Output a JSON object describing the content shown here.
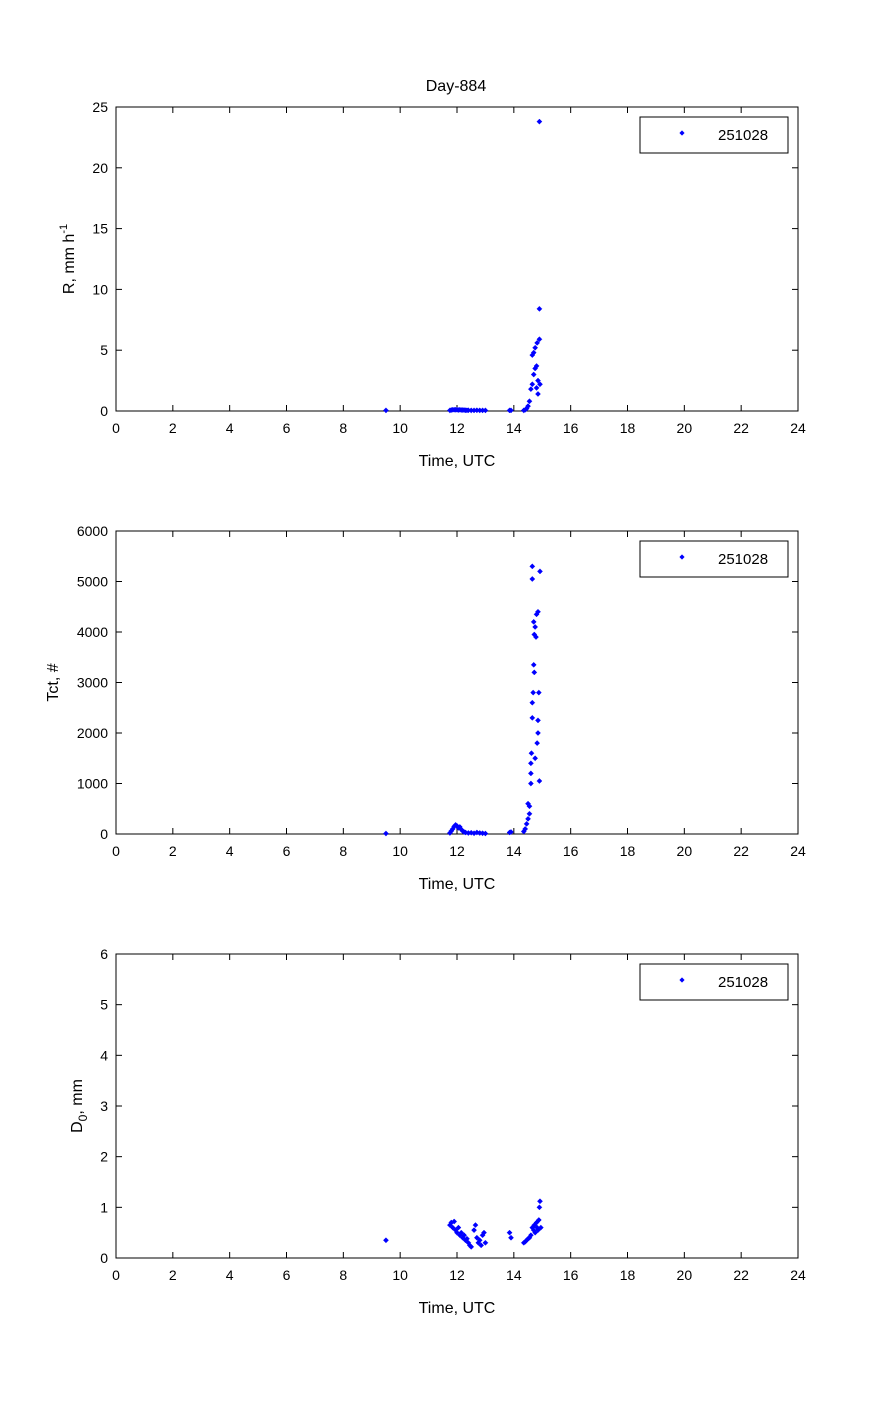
{
  "figure_title": "Day-884",
  "marker_color": "#0000ff",
  "chart_data": [
    {
      "type": "scatter",
      "title": "Day-884",
      "xlabel": "Time, UTC",
      "ylabel": {
        "base": "R, mm h",
        "sup": "-1",
        "sub": ""
      },
      "xlim": [
        0,
        24
      ],
      "ylim": [
        0,
        25
      ],
      "xticks": [
        0,
        2,
        4,
        6,
        8,
        10,
        12,
        14,
        16,
        18,
        20,
        22,
        24
      ],
      "yticks": [
        0,
        5,
        10,
        15,
        20,
        25
      ],
      "legend": "top-right",
      "series": [
        {
          "name": "251028",
          "color": "#0000ff",
          "points": [
            [
              9.5,
              0.05
            ],
            [
              11.75,
              0.05
            ],
            [
              11.8,
              0.08
            ],
            [
              11.85,
              0.1
            ],
            [
              11.9,
              0.1
            ],
            [
              11.95,
              0.1
            ],
            [
              12.0,
              0.1
            ],
            [
              12.05,
              0.08
            ],
            [
              12.1,
              0.1
            ],
            [
              12.15,
              0.08
            ],
            [
              12.2,
              0.08
            ],
            [
              12.25,
              0.08
            ],
            [
              12.3,
              0.06
            ],
            [
              12.35,
              0.06
            ],
            [
              12.4,
              0.06
            ],
            [
              12.5,
              0.05
            ],
            [
              12.6,
              0.05
            ],
            [
              12.7,
              0.06
            ],
            [
              12.8,
              0.05
            ],
            [
              12.9,
              0.05
            ],
            [
              13.0,
              0.05
            ],
            [
              13.85,
              0.05
            ],
            [
              13.9,
              0.05
            ],
            [
              14.35,
              0.05
            ],
            [
              14.4,
              0.1
            ],
            [
              14.45,
              0.2
            ],
            [
              14.5,
              0.4
            ],
            [
              14.55,
              0.8
            ],
            [
              14.6,
              1.8
            ],
            [
              14.65,
              2.2
            ],
            [
              14.65,
              4.6
            ],
            [
              14.7,
              3.0
            ],
            [
              14.7,
              4.8
            ],
            [
              14.75,
              3.5
            ],
            [
              14.75,
              5.2
            ],
            [
              14.8,
              1.9
            ],
            [
              14.8,
              3.7
            ],
            [
              14.82,
              5.6
            ],
            [
              14.85,
              2.5
            ],
            [
              14.85,
              1.4
            ],
            [
              14.9,
              5.9
            ],
            [
              14.9,
              8.4
            ],
            [
              14.92,
              2.2
            ],
            [
              14.9,
              23.8
            ]
          ]
        }
      ]
    },
    {
      "type": "scatter",
      "xlabel": "Time, UTC",
      "ylabel": {
        "base": "Tct, #",
        "sup": "",
        "sub": ""
      },
      "xlim": [
        0,
        24
      ],
      "ylim": [
        0,
        6000
      ],
      "xticks": [
        0,
        2,
        4,
        6,
        8,
        10,
        12,
        14,
        16,
        18,
        20,
        22,
        24
      ],
      "yticks": [
        0,
        1000,
        2000,
        3000,
        4000,
        5000,
        6000
      ],
      "legend": "top-right",
      "series": [
        {
          "name": "251028",
          "color": "#0000ff",
          "points": [
            [
              9.5,
              10
            ],
            [
              11.75,
              20
            ],
            [
              11.8,
              60
            ],
            [
              11.85,
              100
            ],
            [
              11.9,
              150
            ],
            [
              11.95,
              180
            ],
            [
              12.0,
              160
            ],
            [
              12.05,
              120
            ],
            [
              12.1,
              140
            ],
            [
              12.15,
              90
            ],
            [
              12.2,
              60
            ],
            [
              12.25,
              40
            ],
            [
              12.3,
              30
            ],
            [
              12.4,
              20
            ],
            [
              12.5,
              25
            ],
            [
              12.6,
              15
            ],
            [
              12.7,
              30
            ],
            [
              12.8,
              20
            ],
            [
              12.9,
              15
            ],
            [
              13.0,
              10
            ],
            [
              13.85,
              30
            ],
            [
              13.9,
              40
            ],
            [
              14.35,
              50
            ],
            [
              14.4,
              100
            ],
            [
              14.45,
              200
            ],
            [
              14.5,
              300
            ],
            [
              14.5,
              600
            ],
            [
              14.55,
              400
            ],
            [
              14.55,
              550
            ],
            [
              14.6,
              1000
            ],
            [
              14.6,
              1200
            ],
            [
              14.6,
              1400
            ],
            [
              14.62,
              1600
            ],
            [
              14.65,
              2300
            ],
            [
              14.65,
              2600
            ],
            [
              14.68,
              2800
            ],
            [
              14.7,
              3350
            ],
            [
              14.72,
              3200
            ],
            [
              14.65,
              5050
            ],
            [
              14.65,
              5300
            ],
            [
              14.7,
              4200
            ],
            [
              14.72,
              3950
            ],
            [
              14.75,
              4100
            ],
            [
              14.78,
              3900
            ],
            [
              14.8,
              4350
            ],
            [
              14.85,
              4400
            ],
            [
              14.82,
              1800
            ],
            [
              14.85,
              2000
            ],
            [
              14.85,
              2250
            ],
            [
              14.88,
              2800
            ],
            [
              14.9,
              1050
            ],
            [
              14.92,
              5200
            ],
            [
              14.75,
              1500
            ]
          ]
        }
      ]
    },
    {
      "type": "scatter",
      "xlabel": "Time, UTC",
      "ylabel": {
        "base": "D",
        "sup": "",
        "sub": "0",
        "after": ", mm"
      },
      "xlim": [
        0,
        24
      ],
      "ylim": [
        0,
        6
      ],
      "xticks": [
        0,
        2,
        4,
        6,
        8,
        10,
        12,
        14,
        16,
        18,
        20,
        22,
        24
      ],
      "yticks": [
        0,
        1,
        2,
        3,
        4,
        5,
        6
      ],
      "legend": "top-right",
      "series": [
        {
          "name": "251028",
          "color": "#0000ff",
          "points": [
            [
              9.5,
              0.35
            ],
            [
              11.75,
              0.65
            ],
            [
              11.8,
              0.7
            ],
            [
              11.85,
              0.6
            ],
            [
              11.9,
              0.72
            ],
            [
              11.95,
              0.55
            ],
            [
              12.0,
              0.5
            ],
            [
              12.05,
              0.6
            ],
            [
              12.1,
              0.45
            ],
            [
              12.15,
              0.5
            ],
            [
              12.2,
              0.4
            ],
            [
              12.25,
              0.45
            ],
            [
              12.3,
              0.35
            ],
            [
              12.35,
              0.38
            ],
            [
              12.4,
              0.3
            ],
            [
              12.45,
              0.25
            ],
            [
              12.5,
              0.22
            ],
            [
              12.6,
              0.55
            ],
            [
              12.65,
              0.65
            ],
            [
              12.7,
              0.4
            ],
            [
              12.75,
              0.3
            ],
            [
              12.8,
              0.35
            ],
            [
              12.85,
              0.25
            ],
            [
              12.9,
              0.45
            ],
            [
              12.95,
              0.5
            ],
            [
              13.0,
              0.3
            ],
            [
              13.85,
              0.5
            ],
            [
              13.9,
              0.4
            ],
            [
              14.35,
              0.3
            ],
            [
              14.4,
              0.32
            ],
            [
              14.45,
              0.35
            ],
            [
              14.5,
              0.38
            ],
            [
              14.55,
              0.4
            ],
            [
              14.6,
              0.45
            ],
            [
              14.65,
              0.6
            ],
            [
              14.7,
              0.55
            ],
            [
              14.72,
              0.65
            ],
            [
              14.75,
              0.5
            ],
            [
              14.8,
              0.7
            ],
            [
              14.82,
              0.6
            ],
            [
              14.85,
              0.55
            ],
            [
              14.88,
              0.75
            ],
            [
              14.9,
              1.0
            ],
            [
              14.92,
              1.12
            ],
            [
              14.95,
              0.6
            ]
          ]
        }
      ]
    }
  ]
}
